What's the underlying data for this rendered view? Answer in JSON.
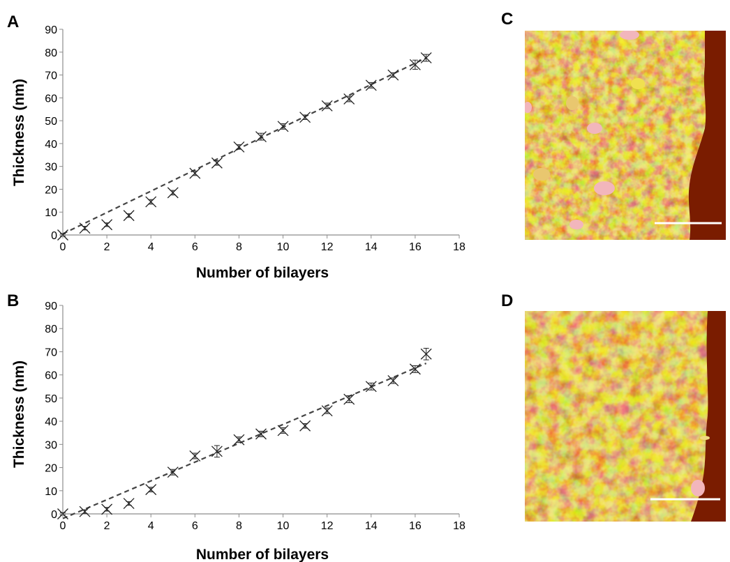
{
  "panels": {
    "a": "A",
    "b": "B",
    "c": "C",
    "d": "D"
  },
  "colors": {
    "afm_dark": "#7a1c00",
    "afm_mid": "#b8580c",
    "afm_yellow": "#e4da3a",
    "afm_pink": "#f2b6bc",
    "scale_bar": "#ffffff"
  },
  "chart_data": [
    {
      "type": "scatter",
      "panel": "A",
      "xlabel": "Number of bilayers",
      "ylabel": "Thickness (nm)",
      "xlim": [
        0,
        18
      ],
      "ylim": [
        0,
        90
      ],
      "xticks": [
        "0",
        "2",
        "4",
        "6",
        "8",
        "10",
        "12",
        "14",
        "16",
        "18"
      ],
      "yticks": [
        "0",
        "10",
        "20",
        "30",
        "40",
        "50",
        "60",
        "70",
        "80",
        "90"
      ],
      "points": [
        {
          "x": 0,
          "y": 0,
          "err": 0.5
        },
        {
          "x": 1,
          "y": 3,
          "err": 0.8
        },
        {
          "x": 2,
          "y": 4.5,
          "err": 0.8
        },
        {
          "x": 3,
          "y": 8.5,
          "err": 0.8
        },
        {
          "x": 4,
          "y": 14.5,
          "err": 1.0
        },
        {
          "x": 5,
          "y": 18.5,
          "err": 1.0
        },
        {
          "x": 6,
          "y": 27,
          "err": 1.0
        },
        {
          "x": 7,
          "y": 31.5,
          "err": 1.0
        },
        {
          "x": 8,
          "y": 38.5,
          "err": 1.0
        },
        {
          "x": 9,
          "y": 43,
          "err": 1.5
        },
        {
          "x": 10,
          "y": 47.5,
          "err": 1.2
        },
        {
          "x": 11,
          "y": 51.5,
          "err": 1.0
        },
        {
          "x": 12,
          "y": 56.5,
          "err": 1.2
        },
        {
          "x": 13,
          "y": 59.5,
          "err": 1.2
        },
        {
          "x": 14,
          "y": 65.5,
          "err": 1.2
        },
        {
          "x": 15,
          "y": 70,
          "err": 1.0
        },
        {
          "x": 16,
          "y": 74.5,
          "err": 2.0
        },
        {
          "x": 16.5,
          "y": 77.5,
          "err": 1.5
        }
      ],
      "fit": {
        "x": [
          0,
          16.5
        ],
        "y": [
          0.5,
          77.5
        ],
        "style": "dashed"
      },
      "grid": false,
      "legend": "none"
    },
    {
      "type": "scatter",
      "panel": "B",
      "xlabel": "Number of bilayers",
      "ylabel": "Thickness (nm)",
      "xlim": [
        0,
        18
      ],
      "ylim": [
        0,
        90
      ],
      "xticks": [
        "0",
        "2",
        "4",
        "6",
        "8",
        "10",
        "12",
        "14",
        "16",
        "18"
      ],
      "yticks": [
        "0",
        "10",
        "20",
        "30",
        "40",
        "50",
        "60",
        "70",
        "80",
        "90"
      ],
      "points": [
        {
          "x": 0,
          "y": 0,
          "err": 0.5
        },
        {
          "x": 1,
          "y": 1,
          "err": 0.8
        },
        {
          "x": 2,
          "y": 2,
          "err": 0.8
        },
        {
          "x": 3,
          "y": 4.5,
          "err": 0.8
        },
        {
          "x": 4,
          "y": 10.5,
          "err": 1.0
        },
        {
          "x": 5,
          "y": 18,
          "err": 1.2
        },
        {
          "x": 6,
          "y": 25,
          "err": 1.2
        },
        {
          "x": 7,
          "y": 27,
          "err": 2.5
        },
        {
          "x": 8,
          "y": 32,
          "err": 1.2
        },
        {
          "x": 9,
          "y": 34.5,
          "err": 1.2
        },
        {
          "x": 10,
          "y": 36,
          "err": 1.2
        },
        {
          "x": 11,
          "y": 38,
          "err": 1.0
        },
        {
          "x": 12,
          "y": 44.5,
          "err": 1.2
        },
        {
          "x": 13,
          "y": 49.5,
          "err": 1.5
        },
        {
          "x": 14,
          "y": 55,
          "err": 1.5
        },
        {
          "x": 15,
          "y": 57.5,
          "err": 1.2
        },
        {
          "x": 16,
          "y": 62.5,
          "err": 1.5
        },
        {
          "x": 16.5,
          "y": 69,
          "err": 2.5
        }
      ],
      "fit": {
        "x": [
          0,
          16.5
        ],
        "y": [
          -2,
          65
        ],
        "style": "dashed"
      },
      "grid": false,
      "legend": "none"
    }
  ]
}
